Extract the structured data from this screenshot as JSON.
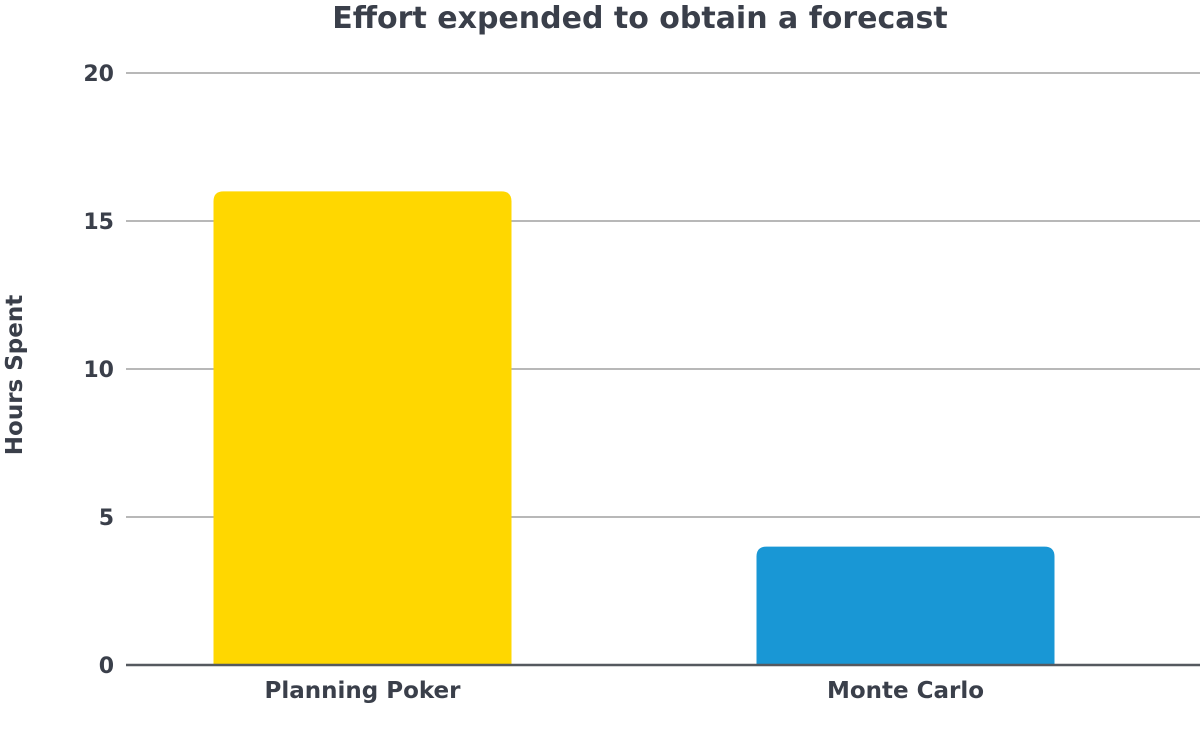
{
  "chart_data": {
    "type": "bar",
    "title": "Effort expended to obtain a forecast",
    "xlabel": "",
    "ylabel": "Hours Spent",
    "categories": [
      "Planning Poker",
      "Monte Carlo"
    ],
    "values": [
      16,
      4
    ],
    "bar_colors": [
      "#FFD700",
      "#1997D5"
    ],
    "ylim": [
      0,
      20
    ],
    "yticks": [
      0,
      5,
      10,
      15,
      20
    ],
    "grid": true,
    "legend": "none"
  },
  "colors": {
    "text": "#3a3f4a",
    "gridline": "#b8b8b8",
    "baseline": "#55595f"
  }
}
